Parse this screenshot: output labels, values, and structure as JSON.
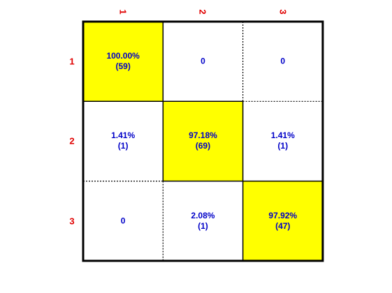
{
  "chart_data": {
    "type": "heatmap",
    "row_labels": [
      "1",
      "2",
      "3"
    ],
    "col_labels": [
      "1",
      "2",
      "3"
    ],
    "cells": [
      [
        {
          "pct": "100.00%",
          "count": "(59)",
          "highlight": true
        },
        {
          "pct": "0",
          "count": "",
          "highlight": false
        },
        {
          "pct": "0",
          "count": "",
          "highlight": false
        }
      ],
      [
        {
          "pct": "1.41%",
          "count": "(1)",
          "highlight": false
        },
        {
          "pct": "97.18%",
          "count": "(69)",
          "highlight": true
        },
        {
          "pct": "1.41%",
          "count": "(1)",
          "highlight": false
        }
      ],
      [
        {
          "pct": "0",
          "count": "",
          "highlight": false
        },
        {
          "pct": "2.08%",
          "count": "(1)",
          "highlight": false
        },
        {
          "pct": "97.92%",
          "count": "(47)",
          "highlight": true
        }
      ]
    ],
    "highlight_color": "#ffff00",
    "label_color": "#e00000",
    "value_color": "#0000c8"
  }
}
